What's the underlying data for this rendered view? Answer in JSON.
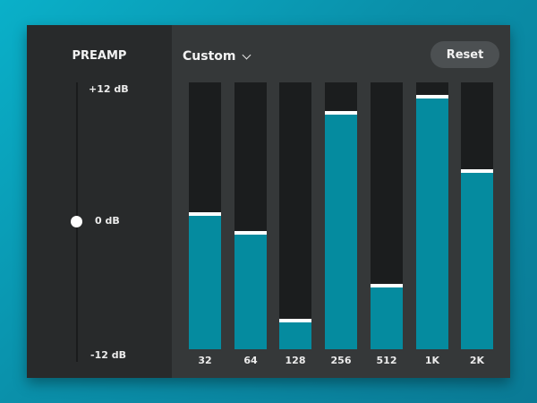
{
  "preamp": {
    "title": "PREAMP",
    "max_label": "+12 dB",
    "value_label": "0 dB",
    "min_label": "-12 dB"
  },
  "header": {
    "preset": "Custom",
    "reset_label": "Reset"
  },
  "bands": [
    {
      "label": "32",
      "level": 0.5
    },
    {
      "label": "64",
      "level": 0.43
    },
    {
      "label": "128",
      "level": 0.1
    },
    {
      "label": "256",
      "level": 0.88
    },
    {
      "label": "512",
      "level": 0.23
    },
    {
      "label": "1K",
      "level": 0.94
    },
    {
      "label": "2K",
      "level": 0.66
    }
  ],
  "colors": {
    "accent": "#058b9f",
    "track": "#1b1d1e",
    "handle": "#ffffff"
  }
}
